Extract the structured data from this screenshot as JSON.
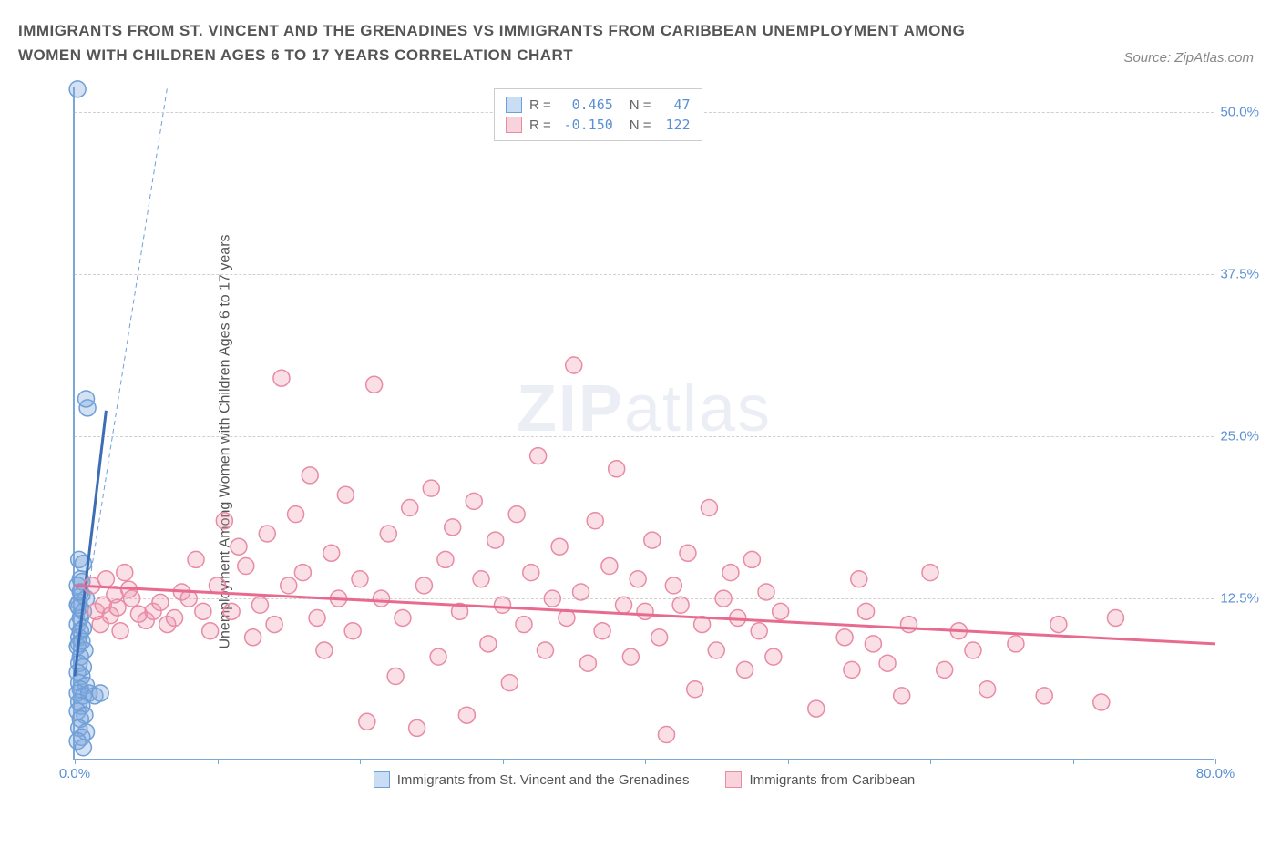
{
  "title": "IMMIGRANTS FROM ST. VINCENT AND THE GRENADINES VS IMMIGRANTS FROM CARIBBEAN UNEMPLOYMENT AMONG WOMEN WITH CHILDREN AGES 6 TO 17 YEARS CORRELATION CHART",
  "source_label": "Source: ZipAtlas.com",
  "ylabel": "Unemployment Among Women with Children Ages 6 to 17 years",
  "watermark_a": "ZIP",
  "watermark_b": "atlas",
  "chart": {
    "type": "scatter",
    "xlim": [
      0,
      80
    ],
    "ylim": [
      0,
      52
    ],
    "x_ticks": [
      0,
      10,
      20,
      30,
      40,
      50,
      60,
      70,
      80
    ],
    "x_tick_labels": {
      "0": "0.0%",
      "80": "80.0%"
    },
    "y_ticks": [
      12.5,
      25.0,
      37.5,
      50.0
    ],
    "y_tick_labels": [
      "12.5%",
      "25.0%",
      "37.5%",
      "50.0%"
    ],
    "grid_color": "#d0d0d0",
    "axis_color": "#7ba7d9",
    "background_color": "#ffffff",
    "legend_box": {
      "rows": [
        {
          "color_fill": "#c9def5",
          "color_border": "#6f9fd8",
          "r_label": "R =",
          "r_val": "0.465",
          "n_label": "N =",
          "n_val": "47"
        },
        {
          "color_fill": "#f8d3dc",
          "color_border": "#e88ba3",
          "r_label": "R =",
          "r_val": "-0.150",
          "n_label": "N =",
          "n_val": "122"
        }
      ]
    },
    "bottom_legend": [
      {
        "color_fill": "#c9def5",
        "color_border": "#6f9fd8",
        "label": "Immigrants from St. Vincent and the Grenadines"
      },
      {
        "color_fill": "#f8d3dc",
        "color_border": "#e88ba3",
        "label": "Immigrants from Caribbean"
      }
    ],
    "series": [
      {
        "name": "Immigrants from St. Vincent and the Grenadines",
        "color_fill": "rgba(130,170,220,0.35)",
        "color_stroke": "#6f9fd8",
        "marker_radius": 9,
        "trend_solid": {
          "x1": 0,
          "y1": 6.5,
          "x2": 2.2,
          "y2": 27,
          "color": "#3d6db5",
          "width": 3
        },
        "trend_dashed": {
          "x1": 0,
          "y1": 6.5,
          "x2": 6.5,
          "y2": 52,
          "color": "#6f9fd8",
          "width": 1,
          "dash": "5,4"
        },
        "points": [
          [
            0.2,
            51.8
          ],
          [
            0.9,
            27.2
          ],
          [
            0.8,
            27.9
          ],
          [
            0.3,
            15.5
          ],
          [
            0.6,
            15.2
          ],
          [
            0.4,
            14.0
          ],
          [
            0.2,
            13.5
          ],
          [
            0.5,
            12.8
          ],
          [
            0.3,
            12.2
          ],
          [
            0.8,
            12.5
          ],
          [
            0.4,
            11.0
          ],
          [
            0.2,
            10.5
          ],
          [
            0.6,
            10.2
          ],
          [
            0.3,
            9.5
          ],
          [
            0.5,
            9.2
          ],
          [
            0.2,
            8.8
          ],
          [
            0.7,
            8.5
          ],
          [
            0.4,
            8.0
          ],
          [
            0.3,
            7.5
          ],
          [
            0.6,
            7.2
          ],
          [
            0.2,
            6.8
          ],
          [
            0.5,
            6.5
          ],
          [
            0.3,
            6.0
          ],
          [
            0.8,
            5.8
          ],
          [
            0.4,
            5.5
          ],
          [
            0.2,
            5.2
          ],
          [
            0.6,
            5.0
          ],
          [
            1.0,
            5.2
          ],
          [
            1.4,
            5.0
          ],
          [
            1.8,
            5.2
          ],
          [
            0.3,
            4.5
          ],
          [
            0.5,
            4.2
          ],
          [
            0.2,
            3.8
          ],
          [
            0.7,
            3.5
          ],
          [
            0.4,
            3.2
          ],
          [
            0.3,
            2.5
          ],
          [
            0.8,
            2.2
          ],
          [
            0.5,
            1.8
          ],
          [
            0.2,
            1.5
          ],
          [
            0.6,
            1.0
          ],
          [
            0.3,
            11.8
          ],
          [
            0.5,
            13.8
          ],
          [
            0.2,
            12.0
          ],
          [
            0.4,
            10.0
          ],
          [
            0.3,
            9.0
          ],
          [
            0.6,
            11.5
          ],
          [
            0.4,
            13.0
          ]
        ]
      },
      {
        "name": "Immigrants from Caribbean",
        "color_fill": "rgba(240,150,175,0.30)",
        "color_stroke": "#e88ba3",
        "marker_radius": 9,
        "trend_solid": {
          "x1": 0,
          "y1": 13.5,
          "x2": 80,
          "y2": 9.0,
          "color": "#e86b8f",
          "width": 3
        },
        "points": [
          [
            1.5,
            11.5
          ],
          [
            2.0,
            12.0
          ],
          [
            2.5,
            11.2
          ],
          [
            3.0,
            11.8
          ],
          [
            3.5,
            14.5
          ],
          [
            4.0,
            12.5
          ],
          [
            4.5,
            11.3
          ],
          [
            5.0,
            10.8
          ],
          [
            5.5,
            11.5
          ],
          [
            6.0,
            12.2
          ],
          [
            6.5,
            10.5
          ],
          [
            7.0,
            11.0
          ],
          [
            7.5,
            13.0
          ],
          [
            8.0,
            12.5
          ],
          [
            8.5,
            15.5
          ],
          [
            9.0,
            11.5
          ],
          [
            9.5,
            10.0
          ],
          [
            10.0,
            13.5
          ],
          [
            10.5,
            18.5
          ],
          [
            11.0,
            11.5
          ],
          [
            11.5,
            16.5
          ],
          [
            12.0,
            15.0
          ],
          [
            12.5,
            9.5
          ],
          [
            13.0,
            12.0
          ],
          [
            13.5,
            17.5
          ],
          [
            14.0,
            10.5
          ],
          [
            14.5,
            29.5
          ],
          [
            15.0,
            13.5
          ],
          [
            15.5,
            19.0
          ],
          [
            16.0,
            14.5
          ],
          [
            16.5,
            22.0
          ],
          [
            17.0,
            11.0
          ],
          [
            17.5,
            8.5
          ],
          [
            18.0,
            16.0
          ],
          [
            18.5,
            12.5
          ],
          [
            19.0,
            20.5
          ],
          [
            19.5,
            10.0
          ],
          [
            20.0,
            14.0
          ],
          [
            20.5,
            3.0
          ],
          [
            21.0,
            29.0
          ],
          [
            21.5,
            12.5
          ],
          [
            22.0,
            17.5
          ],
          [
            22.5,
            6.5
          ],
          [
            23.0,
            11.0
          ],
          [
            23.5,
            19.5
          ],
          [
            24.0,
            2.5
          ],
          [
            24.5,
            13.5
          ],
          [
            25.0,
            21.0
          ],
          [
            25.5,
            8.0
          ],
          [
            26.0,
            15.5
          ],
          [
            26.5,
            18.0
          ],
          [
            27.0,
            11.5
          ],
          [
            27.5,
            3.5
          ],
          [
            28.0,
            20.0
          ],
          [
            28.5,
            14.0
          ],
          [
            29.0,
            9.0
          ],
          [
            29.5,
            17.0
          ],
          [
            30.0,
            12.0
          ],
          [
            30.5,
            6.0
          ],
          [
            31.0,
            19.0
          ],
          [
            31.5,
            10.5
          ],
          [
            32.0,
            14.5
          ],
          [
            32.5,
            23.5
          ],
          [
            33.0,
            8.5
          ],
          [
            33.5,
            12.5
          ],
          [
            34.0,
            16.5
          ],
          [
            34.5,
            11.0
          ],
          [
            35.0,
            30.5
          ],
          [
            35.5,
            13.0
          ],
          [
            36.0,
            7.5
          ],
          [
            36.5,
            18.5
          ],
          [
            37.0,
            10.0
          ],
          [
            37.5,
            15.0
          ],
          [
            38.0,
            22.5
          ],
          [
            38.5,
            12.0
          ],
          [
            39.0,
            8.0
          ],
          [
            39.5,
            14.0
          ],
          [
            40.0,
            11.5
          ],
          [
            40.5,
            17.0
          ],
          [
            41.0,
            9.5
          ],
          [
            41.5,
            2.0
          ],
          [
            42.0,
            13.5
          ],
          [
            42.5,
            12.0
          ],
          [
            43.0,
            16.0
          ],
          [
            43.5,
            5.5
          ],
          [
            44.0,
            10.5
          ],
          [
            44.5,
            19.5
          ],
          [
            45.0,
            8.5
          ],
          [
            45.5,
            12.5
          ],
          [
            46.0,
            14.5
          ],
          [
            46.5,
            11.0
          ],
          [
            47.0,
            7.0
          ],
          [
            47.5,
            15.5
          ],
          [
            48.0,
            10.0
          ],
          [
            48.5,
            13.0
          ],
          [
            49.0,
            8.0
          ],
          [
            49.5,
            11.5
          ],
          [
            52.0,
            4.0
          ],
          [
            54.0,
            9.5
          ],
          [
            54.5,
            7.0
          ],
          [
            55.0,
            14.0
          ],
          [
            55.5,
            11.5
          ],
          [
            56.0,
            9.0
          ],
          [
            57.0,
            7.5
          ],
          [
            58.0,
            5.0
          ],
          [
            58.5,
            10.5
          ],
          [
            60.0,
            14.5
          ],
          [
            61.0,
            7.0
          ],
          [
            62.0,
            10.0
          ],
          [
            63.0,
            8.5
          ],
          [
            64.0,
            5.5
          ],
          [
            66.0,
            9.0
          ],
          [
            68.0,
            5.0
          ],
          [
            69.0,
            10.5
          ],
          [
            72.0,
            4.5
          ],
          [
            73.0,
            11.0
          ],
          [
            1.2,
            13.5
          ],
          [
            1.8,
            10.5
          ],
          [
            2.2,
            14.0
          ],
          [
            2.8,
            12.8
          ],
          [
            3.2,
            10.0
          ],
          [
            3.8,
            13.2
          ]
        ]
      }
    ]
  }
}
